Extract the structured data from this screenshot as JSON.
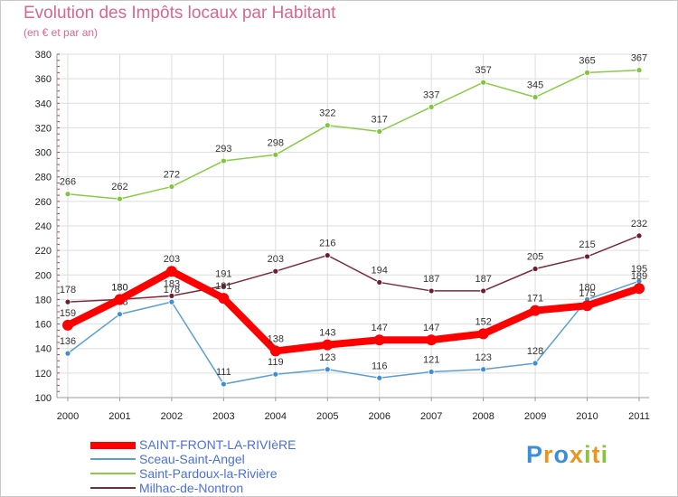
{
  "header": {
    "title": "Evolution des Impôts locaux par Habitant",
    "subtitle": "(en € et par an)"
  },
  "logo": {
    "text": "Proxiti",
    "colors": [
      "#3a8fd6",
      "#e8961e",
      "#3a8fd6",
      "#e8961e",
      "#8ac43f",
      "#e8961e",
      "#8ac43f"
    ]
  },
  "chart_data": {
    "type": "line",
    "x": [
      "2000",
      "2001",
      "2002",
      "2003",
      "2004",
      "2005",
      "2006",
      "2007",
      "2008",
      "2009",
      "2010",
      "2011"
    ],
    "ylim": [
      100,
      380
    ],
    "yticks": [
      100,
      120,
      140,
      160,
      180,
      200,
      220,
      240,
      260,
      280,
      300,
      320,
      340,
      360,
      380
    ],
    "grid": true,
    "legend_position": "bottom-left",
    "series": [
      {
        "name": "Saint-Pardoux-la-Rivière",
        "color": "#88cc44",
        "values": [
          266,
          262,
          272,
          293,
          298,
          322,
          317,
          337,
          357,
          345,
          365,
          367
        ]
      },
      {
        "name": "Milhac-de-Nontron",
        "color": "#7a2a3a",
        "values": [
          178,
          180,
          183,
          191,
          203,
          216,
          194,
          187,
          187,
          205,
          215,
          232
        ]
      },
      {
        "name": "Sceau-Saint-Angel",
        "color": "#5a9fd4",
        "values": [
          136,
          168,
          178,
          111,
          119,
          123,
          116,
          121,
          123,
          128,
          180,
          195
        ]
      },
      {
        "name": "SAINT-FRONT-LA-RIVIèRE",
        "color": "#ff0000",
        "values": [
          159,
          180,
          203,
          181,
          138,
          143,
          147,
          147,
          152,
          171,
          175,
          189
        ]
      }
    ]
  }
}
